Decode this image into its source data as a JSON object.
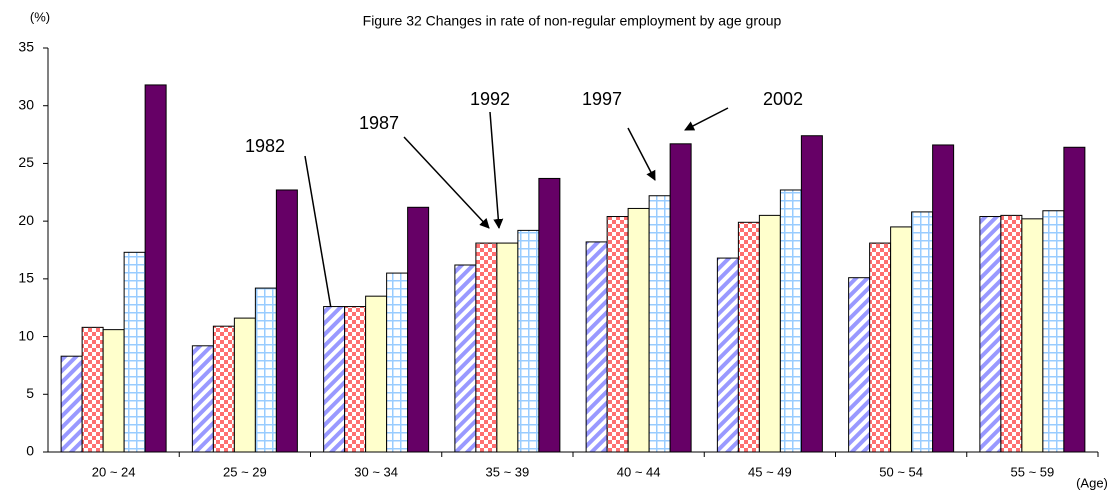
{
  "chart_data": {
    "type": "bar",
    "title": "Figure 32  Changes in rate of non-regular employment by age group",
    "y_label": "(%)",
    "x_label": "(Age)",
    "categories": [
      "20 ~ 24",
      "25 ~ 29",
      "30 ~ 34",
      "35 ~ 39",
      "40 ~ 44",
      "45 ~ 49",
      "50 ~ 54",
      "55 ~ 59"
    ],
    "series": [
      {
        "name": "1982",
        "color": "#9999ff",
        "pattern": "diagonal",
        "values": [
          8.3,
          9.2,
          12.6,
          16.2,
          18.2,
          16.8,
          15.1,
          20.4
        ]
      },
      {
        "name": "1987",
        "color": "#ff7070",
        "pattern": "checker",
        "values": [
          10.8,
          10.9,
          12.6,
          18.1,
          20.4,
          19.9,
          18.1,
          20.5
        ]
      },
      {
        "name": "1992",
        "color": "#ffffcc",
        "pattern": "solid",
        "values": [
          10.6,
          11.6,
          13.5,
          18.1,
          21.1,
          20.5,
          19.5,
          20.2
        ]
      },
      {
        "name": "1997",
        "color": "#99ccff",
        "pattern": "grid",
        "values": [
          17.3,
          14.2,
          15.5,
          19.2,
          22.2,
          22.7,
          20.8,
          20.9
        ]
      },
      {
        "name": "2002",
        "color": "#660066",
        "pattern": "solid",
        "values": [
          31.8,
          22.7,
          21.2,
          23.7,
          26.7,
          27.4,
          26.6,
          26.4
        ]
      }
    ],
    "ylim": [
      0,
      35
    ],
    "yticks": [
      0,
      5,
      10,
      15,
      20,
      25,
      30,
      35
    ],
    "grid": false
  }
}
